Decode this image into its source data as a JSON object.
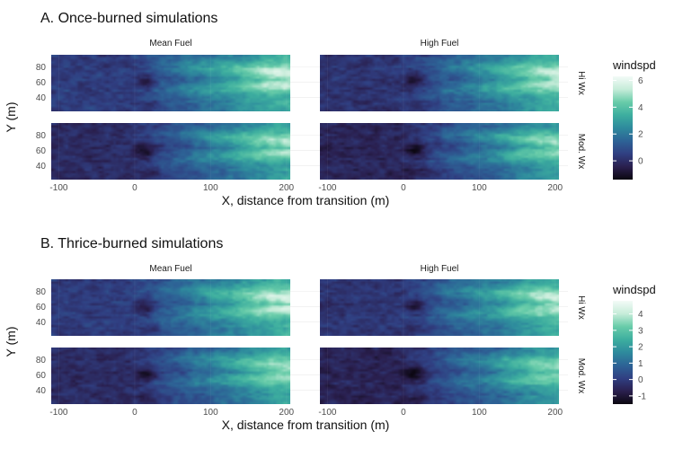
{
  "chart_data": [
    {
      "type": "heatmap",
      "title": "A. Once-burned simulations",
      "facet_columns": [
        "Mean Fuel",
        "High Fuel"
      ],
      "facet_rows": [
        "Hi Wx",
        "Mod. Wx"
      ],
      "xlabel": "X, distance from transition (m)",
      "ylabel": "Y (m)",
      "x_ticks": [
        "-100",
        "0",
        "100",
        "200"
      ],
      "y_ticks": [
        "40",
        "60",
        "80"
      ],
      "xlim": [
        -110,
        205
      ],
      "ylim": [
        22,
        96
      ],
      "legend": {
        "title": "windspd",
        "ticks": [
          "6",
          "4",
          "2",
          "0"
        ],
        "tick_values": [
          6,
          4,
          2,
          0
        ],
        "range": [
          -1.4,
          6.3
        ],
        "position": "right"
      },
      "colormap": [
        "#0b0710",
        "#2a1f4e",
        "#303f82",
        "#2d6396",
        "#2e8a9d",
        "#3dae9f",
        "#68cca9",
        "#c6ecd9",
        "#f3fbf7"
      ],
      "grid": true
    },
    {
      "type": "heatmap",
      "title": "B. Thrice-burned simulations",
      "facet_columns": [
        "Mean Fuel",
        "High Fuel"
      ],
      "facet_rows": [
        "Hi Wx",
        "Mod. Wx"
      ],
      "xlabel": "X, distance from transition (m)",
      "ylabel": "Y (m)",
      "x_ticks": [
        "-100",
        "0",
        "100",
        "200"
      ],
      "y_ticks": [
        "40",
        "60",
        "80"
      ],
      "xlim": [
        -110,
        205
      ],
      "ylim": [
        22,
        96
      ],
      "legend": {
        "title": "windspd",
        "ticks": [
          "4",
          "3",
          "2",
          "1",
          "0",
          "-1"
        ],
        "tick_values": [
          4,
          3,
          2,
          1,
          0,
          -1
        ],
        "range": [
          -1.5,
          4.8
        ],
        "position": "right"
      },
      "colormap": [
        "#0b0710",
        "#2a1f4e",
        "#303f82",
        "#2d6396",
        "#2e8a9d",
        "#3dae9f",
        "#68cca9",
        "#c6ecd9",
        "#f3fbf7"
      ],
      "grid": true
    }
  ]
}
